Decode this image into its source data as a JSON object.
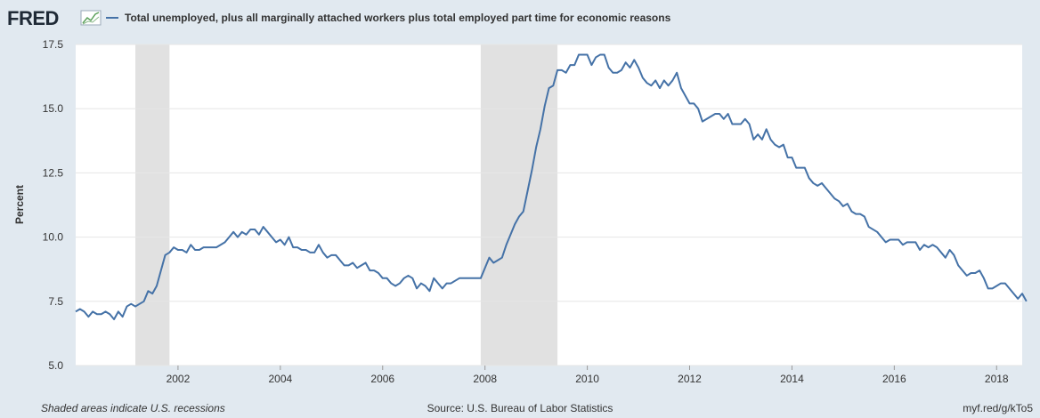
{
  "brand": {
    "logo_text": "FRED",
    "logo_icon": "chart-line-icon"
  },
  "colors": {
    "background": "#e1e9f0",
    "plot_background": "#ffffff",
    "series_line": "#4572a7",
    "recession_shade": "#e1e1e1",
    "gridline": "#e6e6e6",
    "text": "#333333"
  },
  "footer": {
    "recession_note": "Shaded areas indicate U.S. recessions",
    "source": "Source: U.S. Bureau of Labor Statistics",
    "short_url": "myf.red/g/kTo5"
  },
  "chart_data": {
    "type": "line",
    "title": "",
    "xlabel": "",
    "ylabel": "Percent",
    "ylim": [
      5.0,
      17.5
    ],
    "xlim": [
      "2000-01",
      "2018-07"
    ],
    "grid": true,
    "legend_position": "top-left",
    "y_ticks": [
      "5.0",
      "7.5",
      "10.0",
      "12.5",
      "15.0",
      "17.5"
    ],
    "x_ticks": [
      "2002",
      "2004",
      "2006",
      "2008",
      "2010",
      "2012",
      "2014",
      "2016",
      "2018"
    ],
    "recessions": [
      {
        "start": "2001-03",
        "end": "2001-11"
      },
      {
        "start": "2007-12",
        "end": "2009-06"
      }
    ],
    "series": [
      {
        "name": "Total unemployed, plus all marginally attached workers plus total employed part time for economic reasons",
        "start": "2000-01",
        "frequency": "monthly",
        "values": [
          7.1,
          7.2,
          7.1,
          6.9,
          7.1,
          7.0,
          7.0,
          7.1,
          7.0,
          6.8,
          7.1,
          6.9,
          7.3,
          7.4,
          7.3,
          7.4,
          7.5,
          7.9,
          7.8,
          8.1,
          8.7,
          9.3,
          9.4,
          9.6,
          9.5,
          9.5,
          9.4,
          9.7,
          9.5,
          9.5,
          9.6,
          9.6,
          9.6,
          9.6,
          9.7,
          9.8,
          10.0,
          10.2,
          10.0,
          10.2,
          10.1,
          10.3,
          10.3,
          10.1,
          10.4,
          10.2,
          10.0,
          9.8,
          9.9,
          9.7,
          10.0,
          9.6,
          9.6,
          9.5,
          9.5,
          9.4,
          9.4,
          9.7,
          9.4,
          9.2,
          9.3,
          9.3,
          9.1,
          8.9,
          8.9,
          9.0,
          8.8,
          8.9,
          9.0,
          8.7,
          8.7,
          8.6,
          8.4,
          8.4,
          8.2,
          8.1,
          8.2,
          8.4,
          8.5,
          8.4,
          8.0,
          8.2,
          8.1,
          7.9,
          8.4,
          8.2,
          8.0,
          8.2,
          8.2,
          8.3,
          8.4,
          8.4,
          8.4,
          8.4,
          8.4,
          8.4,
          8.8,
          9.2,
          9.0,
          9.1,
          9.2,
          9.7,
          10.1,
          10.5,
          10.8,
          11.0,
          11.8,
          12.6,
          13.5,
          14.2,
          15.1,
          15.8,
          15.9,
          16.5,
          16.5,
          16.4,
          16.7,
          16.7,
          17.1,
          17.1,
          17.1,
          16.7,
          17.0,
          17.1,
          17.1,
          16.6,
          16.4,
          16.4,
          16.5,
          16.8,
          16.6,
          16.9,
          16.6,
          16.2,
          16.0,
          15.9,
          16.1,
          15.8,
          16.1,
          15.9,
          16.1,
          16.4,
          15.8,
          15.5,
          15.2,
          15.2,
          15.0,
          14.5,
          14.6,
          14.7,
          14.8,
          14.8,
          14.6,
          14.8,
          14.4,
          14.4,
          14.4,
          14.6,
          14.4,
          13.8,
          14.0,
          13.8,
          14.2,
          13.8,
          13.6,
          13.5,
          13.6,
          13.1,
          13.1,
          12.7,
          12.7,
          12.7,
          12.3,
          12.1,
          12.0,
          12.1,
          11.9,
          11.7,
          11.5,
          11.4,
          11.2,
          11.3,
          11.0,
          10.9,
          10.9,
          10.8,
          10.4,
          10.3,
          10.2,
          10.0,
          9.8,
          9.9,
          9.9,
          9.9,
          9.7,
          9.8,
          9.8,
          9.8,
          9.5,
          9.7,
          9.6,
          9.7,
          9.6,
          9.4,
          9.2,
          9.5,
          9.3,
          8.9,
          8.7,
          8.5,
          8.6,
          8.6,
          8.7,
          8.4,
          8.0,
          8.0,
          8.1,
          8.2,
          8.2,
          8.0,
          7.8,
          7.6,
          7.8,
          7.5
        ]
      }
    ]
  }
}
